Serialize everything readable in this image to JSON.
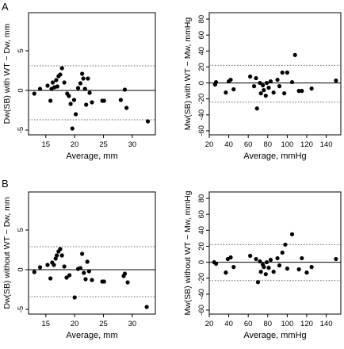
{
  "panel_labels": [
    "A",
    "B"
  ],
  "chart_data": [
    {
      "type": "scatter",
      "panel": "A",
      "xlabel": "Average, mm",
      "ylabel": "Dw(SB) with WT − Dw, mm",
      "xlim": [
        12,
        34
      ],
      "ylim": [
        -5.6,
        9.8
      ],
      "xticks": [
        15,
        20,
        25,
        30
      ],
      "yticks": [
        -5,
        0,
        5
      ],
      "reference_lines": [
        {
          "value": 0,
          "style": "solid"
        },
        {
          "value": 3.1,
          "style": "dotted"
        },
        {
          "value": -3.7,
          "style": "dotted"
        }
      ],
      "points": [
        [
          13,
          -0.4
        ],
        [
          14,
          0.2
        ],
        [
          15.3,
          0.6
        ],
        [
          15.8,
          -1.3
        ],
        [
          16,
          0.2
        ],
        [
          16.2,
          1.0
        ],
        [
          16.5,
          0.4
        ],
        [
          16.8,
          1.3
        ],
        [
          17,
          0.5
        ],
        [
          17.2,
          1.8
        ],
        [
          17.5,
          2.0
        ],
        [
          17.8,
          2.8
        ],
        [
          18.2,
          1.0
        ],
        [
          18.7,
          -0.4
        ],
        [
          19,
          -0.7
        ],
        [
          19.3,
          -1.7
        ],
        [
          19.6,
          -4.8
        ],
        [
          19.9,
          -1.2
        ],
        [
          20.2,
          -3.0
        ],
        [
          20.6,
          0.3
        ],
        [
          21,
          0.9
        ],
        [
          21.3,
          2.1
        ],
        [
          21.5,
          1.5
        ],
        [
          21.8,
          0.2
        ],
        [
          22,
          -1.8
        ],
        [
          22.3,
          1.5
        ],
        [
          22.6,
          -0.3
        ],
        [
          23,
          -1.5
        ],
        [
          24.8,
          -1.3
        ],
        [
          25.1,
          -1.3
        ],
        [
          28,
          -1.2
        ],
        [
          28.7,
          0.1
        ],
        [
          29,
          -2.2
        ],
        [
          32.7,
          -3.9
        ]
      ]
    },
    {
      "type": "scatter",
      "panel": "A",
      "xlabel": "Average, mmHg",
      "ylabel": "Mw(SB) with WT − Mw, mmHg",
      "xlim": [
        20,
        155
      ],
      "ylim": [
        -65,
        88
      ],
      "xticks": [
        20,
        40,
        60,
        80,
        100,
        120,
        140
      ],
      "yticks": [
        -60,
        -40,
        -20,
        0,
        20,
        40,
        60,
        80
      ],
      "reference_lines": [
        {
          "value": 0,
          "style": "solid"
        },
        {
          "value": 22,
          "style": "dotted"
        },
        {
          "value": -24,
          "style": "dotted"
        }
      ],
      "points": [
        [
          26,
          -2
        ],
        [
          27,
          1
        ],
        [
          37,
          -12
        ],
        [
          40,
          2
        ],
        [
          42,
          4
        ],
        [
          45,
          -8
        ],
        [
          62,
          8
        ],
        [
          66,
          -4
        ],
        [
          68,
          6
        ],
        [
          69,
          -32
        ],
        [
          72,
          0
        ],
        [
          73,
          -13
        ],
        [
          75,
          -3
        ],
        [
          76,
          -9
        ],
        [
          78,
          -16
        ],
        [
          79,
          0
        ],
        [
          81,
          -6
        ],
        [
          83,
          2
        ],
        [
          86,
          -12
        ],
        [
          90,
          4
        ],
        [
          92,
          -4
        ],
        [
          95,
          13
        ],
        [
          97,
          -13
        ],
        [
          100,
          13
        ],
        [
          105,
          1
        ],
        [
          108,
          35
        ],
        [
          112,
          -10
        ],
        [
          115,
          -10
        ],
        [
          125,
          -7
        ],
        [
          150,
          3
        ]
      ]
    },
    {
      "type": "scatter",
      "panel": "B",
      "xlabel": "Average, mm",
      "ylabel": "Dw(SB) without WT − Dw, mm",
      "xlim": [
        12,
        34
      ],
      "ylim": [
        -5.6,
        9.8
      ],
      "xticks": [
        15,
        20,
        25,
        30
      ],
      "yticks": [
        -5,
        0,
        5
      ],
      "reference_lines": [
        {
          "value": 0,
          "style": "solid"
        },
        {
          "value": 2.9,
          "style": "dotted"
        },
        {
          "value": -3.4,
          "style": "dotted"
        }
      ],
      "points": [
        [
          13,
          -0.3
        ],
        [
          14,
          0.3
        ],
        [
          15.3,
          0.6
        ],
        [
          15.8,
          -1.1
        ],
        [
          16.1,
          0.9
        ],
        [
          16.4,
          0.6
        ],
        [
          16.7,
          1.4
        ],
        [
          16.9,
          1.8
        ],
        [
          17.2,
          2.3
        ],
        [
          17.5,
          2.6
        ],
        [
          17.8,
          1.8
        ],
        [
          18.2,
          0.4
        ],
        [
          18.6,
          -1.0
        ],
        [
          19.1,
          -0.7
        ],
        [
          20,
          -3.5
        ],
        [
          20.6,
          0.1
        ],
        [
          21,
          0.2
        ],
        [
          21.3,
          2.0
        ],
        [
          21.6,
          -0.4
        ],
        [
          21.9,
          -1.2
        ],
        [
          22.2,
          1.0
        ],
        [
          22.5,
          -0.2
        ],
        [
          23,
          -1.3
        ],
        [
          24.8,
          -1.5
        ],
        [
          25.1,
          -1.5
        ],
        [
          28.5,
          -0.8
        ],
        [
          28.7,
          -0.5
        ],
        [
          29.2,
          -1.6
        ],
        [
          32.5,
          -4.7
        ]
      ]
    },
    {
      "type": "scatter",
      "panel": "B",
      "xlabel": "Average, mmHg",
      "ylabel": "Mw(SB) without WT − Mw, mmHg",
      "xlim": [
        20,
        155
      ],
      "ylim": [
        -65,
        88
      ],
      "xticks": [
        20,
        40,
        60,
        80,
        100,
        120,
        140
      ],
      "yticks": [
        -60,
        -40,
        -20,
        0,
        20,
        40,
        60,
        80
      ],
      "reference_lines": [
        {
          "value": 0,
          "style": "solid"
        },
        {
          "value": 22,
          "style": "dotted"
        },
        {
          "value": -23,
          "style": "dotted"
        }
      ],
      "points": [
        [
          25,
          0
        ],
        [
          27,
          -2
        ],
        [
          37,
          -13
        ],
        [
          39,
          4
        ],
        [
          42,
          6
        ],
        [
          45,
          -6
        ],
        [
          62,
          8
        ],
        [
          68,
          4
        ],
        [
          70,
          -25
        ],
        [
          72,
          1
        ],
        [
          73,
          -12
        ],
        [
          75,
          -3
        ],
        [
          76,
          -6
        ],
        [
          78,
          -15
        ],
        [
          79,
          0
        ],
        [
          81,
          -7
        ],
        [
          83,
          3
        ],
        [
          86,
          -12
        ],
        [
          90,
          5
        ],
        [
          92,
          -4
        ],
        [
          95,
          12
        ],
        [
          98,
          22
        ],
        [
          100,
          -8
        ],
        [
          105,
          35
        ],
        [
          112,
          -9
        ],
        [
          115,
          5
        ],
        [
          120,
          -13
        ],
        [
          125,
          -6
        ],
        [
          150,
          4
        ]
      ]
    }
  ]
}
